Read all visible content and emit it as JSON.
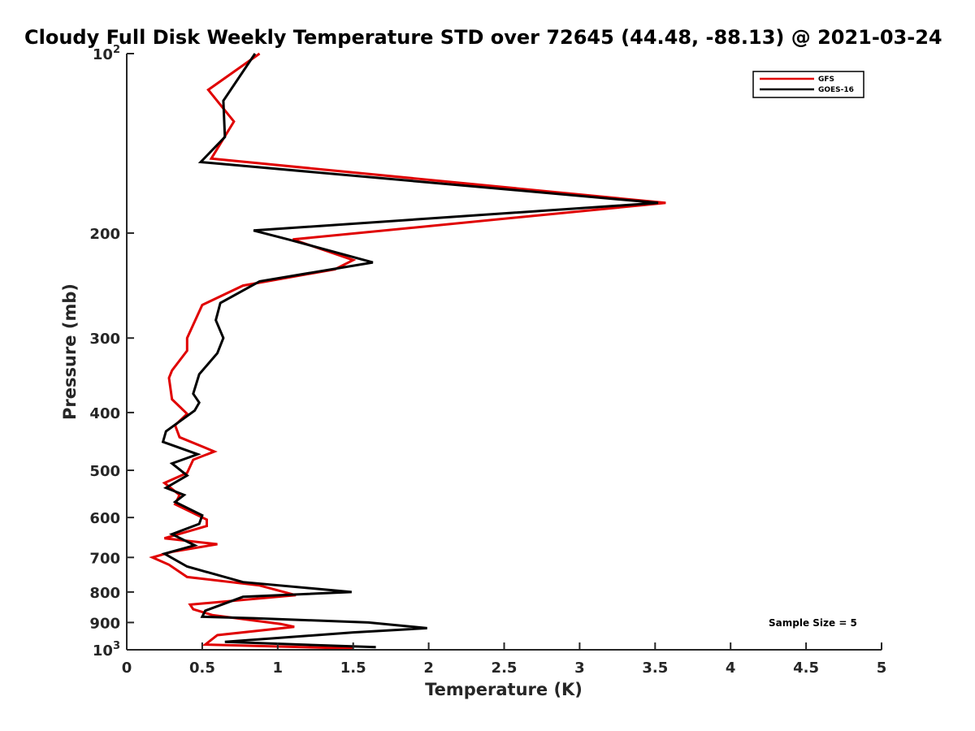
{
  "chart_data": {
    "type": "line",
    "title": "Cloudy Full Disk Weekly Temperature STD over 72645 (44.48, -88.13) @ 2021-03-24",
    "xlabel": "Temperature (K)",
    "ylabel": "Pressure (mb)",
    "xlim": [
      0,
      5
    ],
    "ylim": [
      100,
      1000
    ],
    "y_scale": "log",
    "y_reversed": true,
    "grid": false,
    "legend_position": "top-right",
    "x_ticks": [
      0,
      0.5,
      1,
      1.5,
      2,
      2.5,
      3,
      3.5,
      4,
      4.5,
      5
    ],
    "x_tick_labels": [
      "0",
      "0.5",
      "1",
      "1.5",
      "2",
      "2.5",
      "3",
      "3.5",
      "4",
      "4.5",
      "5"
    ],
    "y_ticks": [
      100,
      200,
      300,
      400,
      500,
      600,
      700,
      800,
      900,
      1000
    ],
    "y_tick_labels": [
      {
        "base": "10",
        "exp": "2"
      },
      {
        "base": "200",
        "exp": ""
      },
      {
        "base": "300",
        "exp": ""
      },
      {
        "base": "400",
        "exp": ""
      },
      {
        "base": "500",
        "exp": ""
      },
      {
        "base": "600",
        "exp": ""
      },
      {
        "base": "700",
        "exp": ""
      },
      {
        "base": "800",
        "exp": ""
      },
      {
        "base": "900",
        "exp": ""
      },
      {
        "base": "10",
        "exp": "3"
      }
    ],
    "annotation": "Sample Size = 5",
    "series": [
      {
        "name": "GFS",
        "color": "#e00000",
        "points": [
          [
            0.88,
            100
          ],
          [
            0.54,
            115
          ],
          [
            0.71,
            130
          ],
          [
            0.56,
            150
          ],
          [
            3.57,
            178
          ],
          [
            1.1,
            205
          ],
          [
            1.5,
            222
          ],
          [
            1.38,
            230
          ],
          [
            0.77,
            245
          ],
          [
            0.5,
            264
          ],
          [
            0.4,
            300
          ],
          [
            0.4,
            315
          ],
          [
            0.3,
            340
          ],
          [
            0.28,
            350
          ],
          [
            0.3,
            380
          ],
          [
            0.4,
            402
          ],
          [
            0.32,
            420
          ],
          [
            0.35,
            440
          ],
          [
            0.58,
            465
          ],
          [
            0.44,
            480
          ],
          [
            0.4,
            505
          ],
          [
            0.25,
            525
          ],
          [
            0.35,
            550
          ],
          [
            0.32,
            570
          ],
          [
            0.53,
            605
          ],
          [
            0.53,
            620
          ],
          [
            0.25,
            650
          ],
          [
            0.6,
            665
          ],
          [
            0.3,
            685
          ],
          [
            0.17,
            700
          ],
          [
            0.28,
            720
          ],
          [
            0.4,
            755
          ],
          [
            0.88,
            780
          ],
          [
            1.12,
            810
          ],
          [
            0.42,
            840
          ],
          [
            0.44,
            855
          ],
          [
            0.57,
            875
          ],
          [
            1.02,
            905
          ],
          [
            1.11,
            915
          ],
          [
            0.6,
            945
          ],
          [
            0.52,
            980
          ],
          [
            1.5,
            995
          ]
        ]
      },
      {
        "name": "GOES-16",
        "color": "#000000",
        "points": [
          [
            0.85,
            100
          ],
          [
            0.64,
            120
          ],
          [
            0.65,
            138
          ],
          [
            0.49,
            152
          ],
          [
            3.52,
            178
          ],
          [
            0.84,
            198
          ],
          [
            1.07,
            205
          ],
          [
            1.63,
            224
          ],
          [
            0.88,
            241
          ],
          [
            0.62,
            262
          ],
          [
            0.59,
            280
          ],
          [
            0.64,
            300
          ],
          [
            0.6,
            318
          ],
          [
            0.48,
            345
          ],
          [
            0.44,
            372
          ],
          [
            0.48,
            385
          ],
          [
            0.45,
            397
          ],
          [
            0.26,
            430
          ],
          [
            0.24,
            448
          ],
          [
            0.47,
            470
          ],
          [
            0.3,
            487
          ],
          [
            0.4,
            510
          ],
          [
            0.26,
            535
          ],
          [
            0.38,
            550
          ],
          [
            0.32,
            565
          ],
          [
            0.5,
            595
          ],
          [
            0.48,
            615
          ],
          [
            0.3,
            640
          ],
          [
            0.45,
            668
          ],
          [
            0.25,
            690
          ],
          [
            0.4,
            725
          ],
          [
            0.77,
            770
          ],
          [
            1.49,
            800
          ],
          [
            0.77,
            815
          ],
          [
            0.52,
            860
          ],
          [
            0.5,
            880
          ],
          [
            0.84,
            885
          ],
          [
            1.6,
            900
          ],
          [
            1.99,
            920
          ],
          [
            1.5,
            935
          ],
          [
            0.65,
            970
          ],
          [
            1.65,
            990
          ]
        ]
      }
    ]
  }
}
